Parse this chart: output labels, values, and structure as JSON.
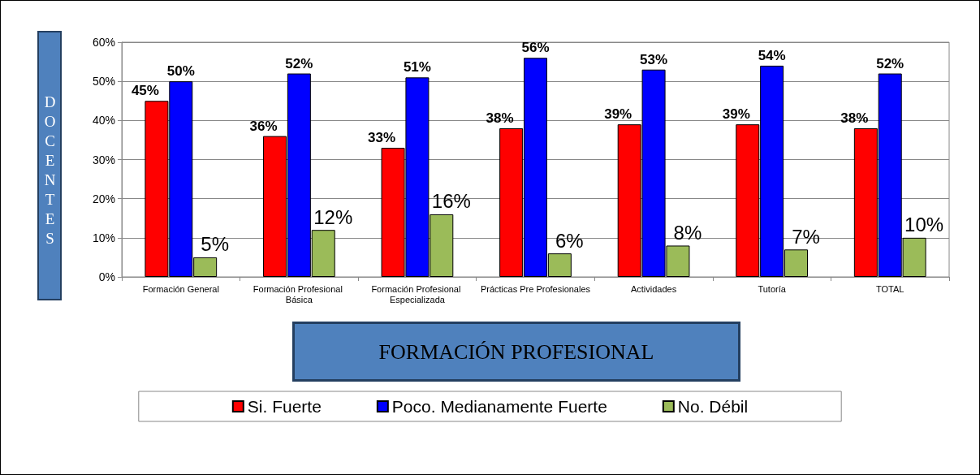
{
  "chart_data": {
    "type": "bar",
    "xlabel": "FORMACIÓN PROFESIONAL",
    "ylabel": "DOCENTES",
    "categories": [
      "Formación General",
      "Formación Profesional Básica",
      "Formación Profesional Especializada",
      "Prácticas Pre Profesionales",
      "Actividades",
      "Tutoría",
      "TOTAL"
    ],
    "series": [
      {
        "name": "Si. Fuerte",
        "color": "#ff0000",
        "values": [
          45,
          36,
          33,
          38,
          39,
          39,
          38
        ],
        "value_labels": [
          "45%",
          "36%",
          "33%",
          "38%",
          "39%",
          "39%",
          "38%"
        ]
      },
      {
        "name": "Poco. Medianamente Fuerte",
        "color": "#0000ff",
        "values": [
          50,
          52,
          51,
          56,
          53,
          54,
          52
        ],
        "value_labels": [
          "50%",
          "52%",
          "51%",
          "56%",
          "53%",
          "54%",
          "52%"
        ]
      },
      {
        "name": "No. Débil",
        "color": "#9bbb59",
        "values": [
          5,
          12,
          16,
          6,
          8,
          7,
          10
        ],
        "value_labels": [
          "5%",
          "12%",
          "16%",
          "6%",
          "8%",
          "7%",
          "10%"
        ]
      }
    ],
    "ylim": [
      0,
      60
    ],
    "yticks": [
      {
        "value": 0,
        "label": "0%"
      },
      {
        "value": 10,
        "label": "10%"
      },
      {
        "value": 20,
        "label": "20%"
      },
      {
        "value": 30,
        "label": "30%"
      },
      {
        "value": 40,
        "label": "40%"
      },
      {
        "value": 50,
        "label": "50%"
      },
      {
        "value": 60,
        "label": "60%"
      }
    ],
    "grid": "y",
    "legend": "bottom"
  }
}
